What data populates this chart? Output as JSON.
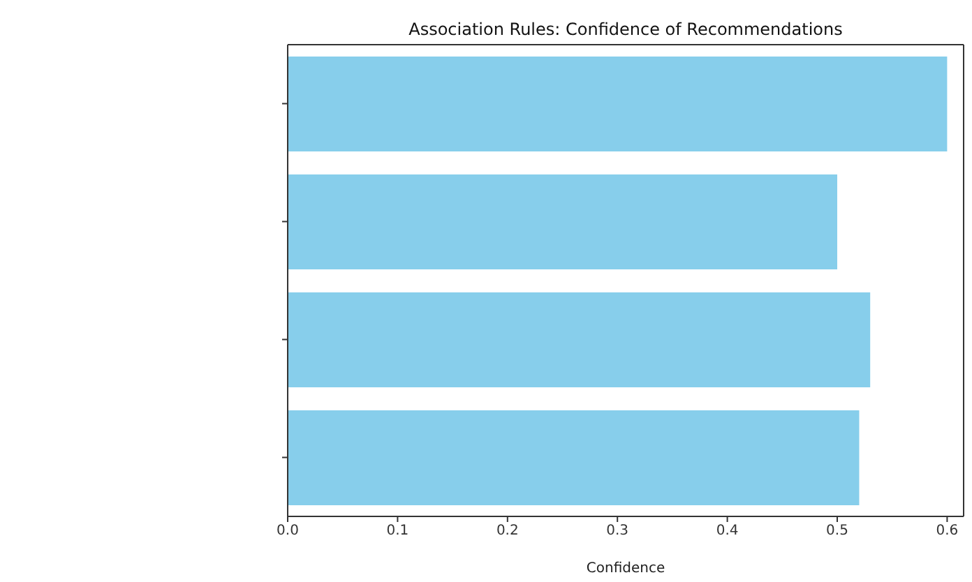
{
  "chart_data": {
    "type": "bar",
    "orientation": "horizontal",
    "title": "Association Rules: Confidence of Recommendations",
    "xlabel": "Confidence",
    "categories": [
      null,
      null,
      null,
      null
    ],
    "values": [
      0.6,
      0.5,
      0.53,
      0.52
    ],
    "color": "#87ceeb",
    "xlim": [
      0,
      0.615
    ],
    "xticks": [
      {
        "value": 0,
        "label": "0.0"
      },
      0.1,
      0.2,
      0.3,
      0.4,
      0.5,
      0.6
    ],
    "grid": false
  }
}
